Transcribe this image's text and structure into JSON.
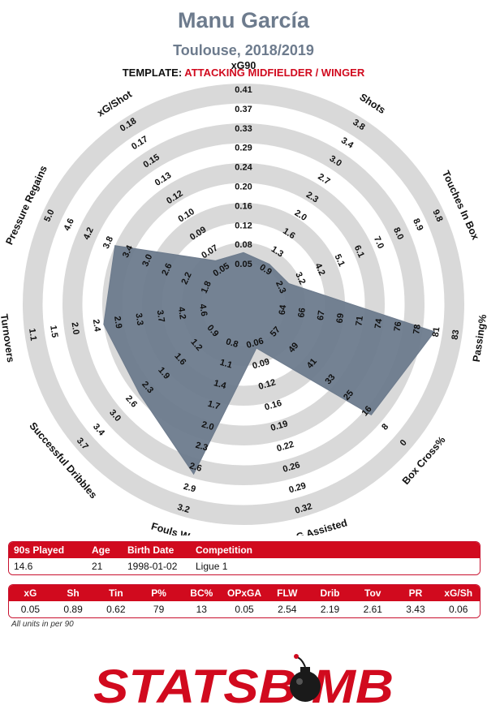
{
  "header": {
    "player": "Manu García",
    "team_season": "Toulouse, 2018/2019",
    "template_label": "TEMPLATE:",
    "template_value": "ATTACKING MIDFIELDER / WINGER"
  },
  "colors": {
    "accent": "#d10a1e",
    "polygon": "#6d7b8d",
    "rings": "#d9d9d9",
    "title": "#6d7b8d"
  },
  "chart_data": {
    "type": "radar",
    "rings": 5,
    "metrics": [
      {
        "label": "xG90",
        "value": 0.05,
        "scale": [
          "0.05",
          "0.08",
          "0.12",
          "0.16",
          "0.20",
          "0.24",
          "0.29",
          "0.33",
          "0.37",
          "0.41"
        ]
      },
      {
        "label": "Shots",
        "value": 0.89,
        "scale": [
          "0.9",
          "1.3",
          "1.6",
          "2.0",
          "2.3",
          "2.7",
          "3.0",
          "3.4",
          "3.8"
        ]
      },
      {
        "label": "Touches In Box",
        "value": 0.62,
        "scale": [
          "2.3",
          "3.2",
          "4.2",
          "5.1",
          "6.1",
          "7.0",
          "8.0",
          "8.9",
          "9.8"
        ]
      },
      {
        "label": "Passing%",
        "value": 79,
        "scale": [
          "64",
          "66",
          "67",
          "69",
          "71",
          "74",
          "76",
          "78",
          "81",
          "83"
        ]
      },
      {
        "label": "Box Cross%",
        "value": 13,
        "scale": [
          "57",
          "49",
          "41",
          "33",
          "25",
          "16",
          "8",
          "0"
        ]
      },
      {
        "label": "OP xG Assisted",
        "value": 0.05,
        "scale": [
          "0.06",
          "0.09",
          "0.12",
          "0.16",
          "0.19",
          "0.22",
          "0.26",
          "0.29",
          "0.32"
        ]
      },
      {
        "label": "Fouls Won",
        "value": 2.54,
        "scale": [
          "0.8",
          "1.1",
          "1.4",
          "1.7",
          "2.0",
          "2.3",
          "2.6",
          "2.9",
          "3.2"
        ]
      },
      {
        "label": "Successful Dribbles",
        "value": 2.19,
        "scale": [
          "0.9",
          "1.2",
          "1.6",
          "1.9",
          "2.3",
          "2.6",
          "3.0",
          "3.4",
          "3.7"
        ]
      },
      {
        "label": "Turnovers",
        "value": 2.61,
        "scale": [
          "4.6",
          "4.2",
          "3.7",
          "3.3",
          "2.9",
          "2.4",
          "2.0",
          "1.5",
          "1.1"
        ]
      },
      {
        "label": "Pressure Regains",
        "value": 3.43,
        "scale": [
          "1.8",
          "2.2",
          "2.6",
          "3.0",
          "3.4",
          "3.8",
          "4.2",
          "4.6",
          "5.0"
        ]
      },
      {
        "label": "xG/Shot",
        "value": 0.06,
        "scale": [
          "0.05",
          "0.07",
          "0.09",
          "0.10",
          "0.12",
          "0.13",
          "0.15",
          "0.17",
          "0.18"
        ]
      }
    ],
    "polygon_fraction": [
      0.15,
      0.13,
      0.14,
      0.86,
      0.74,
      0.12,
      0.78,
      0.58,
      0.6,
      0.6,
      0.15
    ]
  },
  "info_table": {
    "headers": [
      "90s Played",
      "Age",
      "Birth Date",
      "Competition"
    ],
    "values": [
      "14.6",
      "21",
      "1998-01-02",
      "Ligue 1"
    ]
  },
  "stats_table": {
    "headers": [
      "xG",
      "Sh",
      "Tin",
      "P%",
      "BC%",
      "OPxGA",
      "FLW",
      "Drib",
      "Tov",
      "PR",
      "xG/Sh"
    ],
    "values": [
      "0.05",
      "0.89",
      "0.62",
      "79",
      "13",
      "0.05",
      "2.54",
      "2.19",
      "2.61",
      "3.43",
      "0.06"
    ]
  },
  "footnote": "All units in per 90",
  "logo": {
    "text": "STATSBOMB",
    "bomb_icon": "bomb-icon"
  }
}
